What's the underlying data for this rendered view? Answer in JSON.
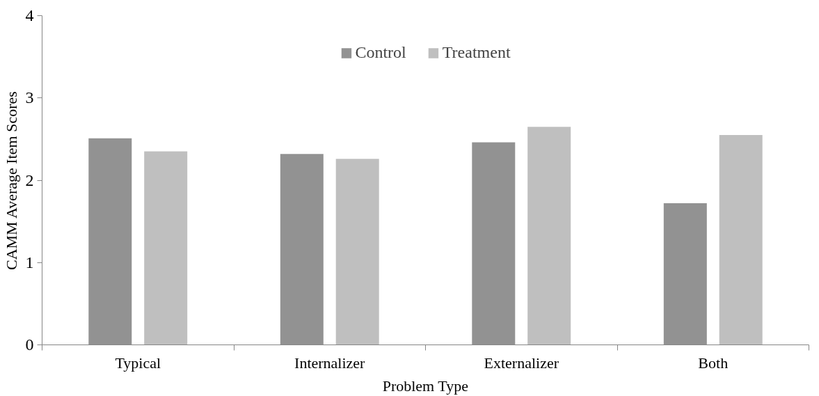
{
  "chart_data": {
    "type": "bar",
    "xlabel": "Problem Type",
    "ylabel": "CAMM Average Item Scores",
    "categories": [
      "Typical",
      "Internalizer",
      "Externalizer",
      "Both"
    ],
    "series": [
      {
        "name": "Control",
        "color": "#929292",
        "values": [
          2.51,
          2.32,
          2.46,
          1.72
        ]
      },
      {
        "name": "Treatment",
        "color": "#bfbfbf",
        "values": [
          2.35,
          2.26,
          2.65,
          2.55
        ]
      }
    ],
    "ylim": [
      0,
      4
    ],
    "yticks": [
      0,
      1,
      2,
      3,
      4
    ],
    "grid": false,
    "legend": "top"
  }
}
